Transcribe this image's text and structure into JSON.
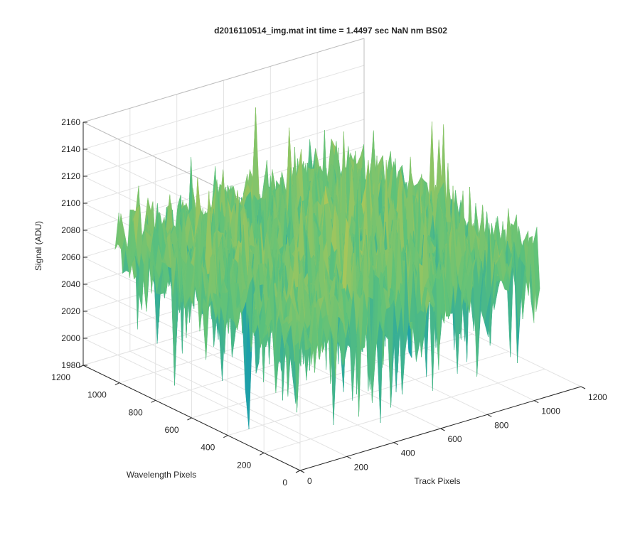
{
  "chart_data": {
    "type": "surface",
    "title": "d2016110514_img.mat int time = 1.4497 sec  NaN nm BS02",
    "xlabel": "Track Pixels",
    "ylabel": "Wavelength Pixels",
    "zlabel": "Signal (ADU)",
    "xlim": [
      0,
      1200
    ],
    "ylim": [
      0,
      1200
    ],
    "zlim": [
      1980,
      2160
    ],
    "xticks": [
      "0",
      "200",
      "400",
      "600",
      "800",
      "1000",
      "1200"
    ],
    "yticks": [
      "0",
      "200",
      "400",
      "600",
      "800",
      "1000",
      "1200"
    ],
    "zticks": [
      "1980",
      "2000",
      "2020",
      "2040",
      "2060",
      "2080",
      "2100",
      "2120",
      "2140",
      "2160"
    ],
    "grid": true,
    "surface_extent": {
      "x": [
        0,
        1024
      ],
      "y": [
        0,
        1024
      ]
    },
    "signal_mean": 2085,
    "signal_range_approx": [
      2000,
      2150
    ],
    "colormap": [
      "#0072bd",
      "#1fa2a8",
      "#5ec27a",
      "#a8c65a",
      "#ecb838"
    ]
  }
}
